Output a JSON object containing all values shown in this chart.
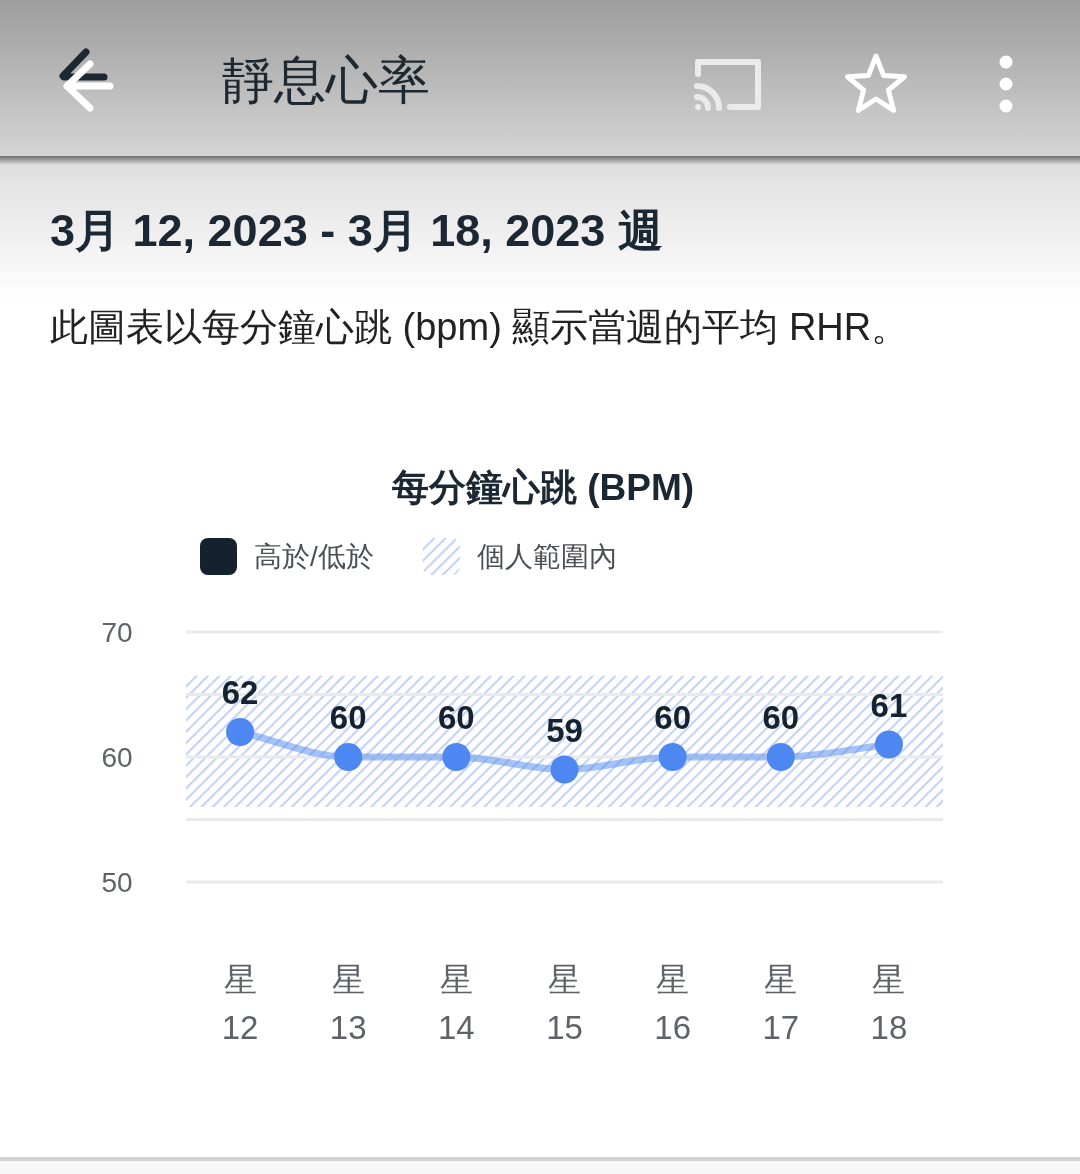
{
  "chart_data": {
    "type": "line",
    "title": "靜息心率",
    "subtitle": "3月 12, 2023 - 3月 18, 2023 週",
    "annotations": [
      "此圖表以每分鐘心跳 (bpm) 顯示當週的平均 RHR。"
    ],
    "ylabel": "每分鐘心跳 (BPM)",
    "categories": [
      "星\n12",
      "星\n13",
      "星\n14",
      "星\n15",
      "星\n16",
      "星\n17",
      "星\n18"
    ],
    "series": [
      {
        "color": "#4d87f1",
        "values": [
          62,
          60,
          60,
          59,
          60,
          60,
          61
        ]
      },
      {
        "name": "高於/低於",
        "color": "#13222e",
        "values": [
          null,
          null,
          null,
          null,
          null,
          null,
          null
        ]
      }
    ],
    "ylim": [
      50,
      70
    ],
    "yticks": [
      50,
      {
        "value": 55,
        "label": null
      },
      60,
      {
        "value": 65,
        "label": null
      },
      70
    ],
    "grid": "y",
    "bands": [
      {
        "axis": "y",
        "from": 56,
        "to": 66.5,
        "label": "個人範圍內",
        "color": "#c3d2f6"
      }
    ],
    "legend": "top left",
    "data_labels": true,
    "marker": "circle",
    "line_style": "solid"
  }
}
